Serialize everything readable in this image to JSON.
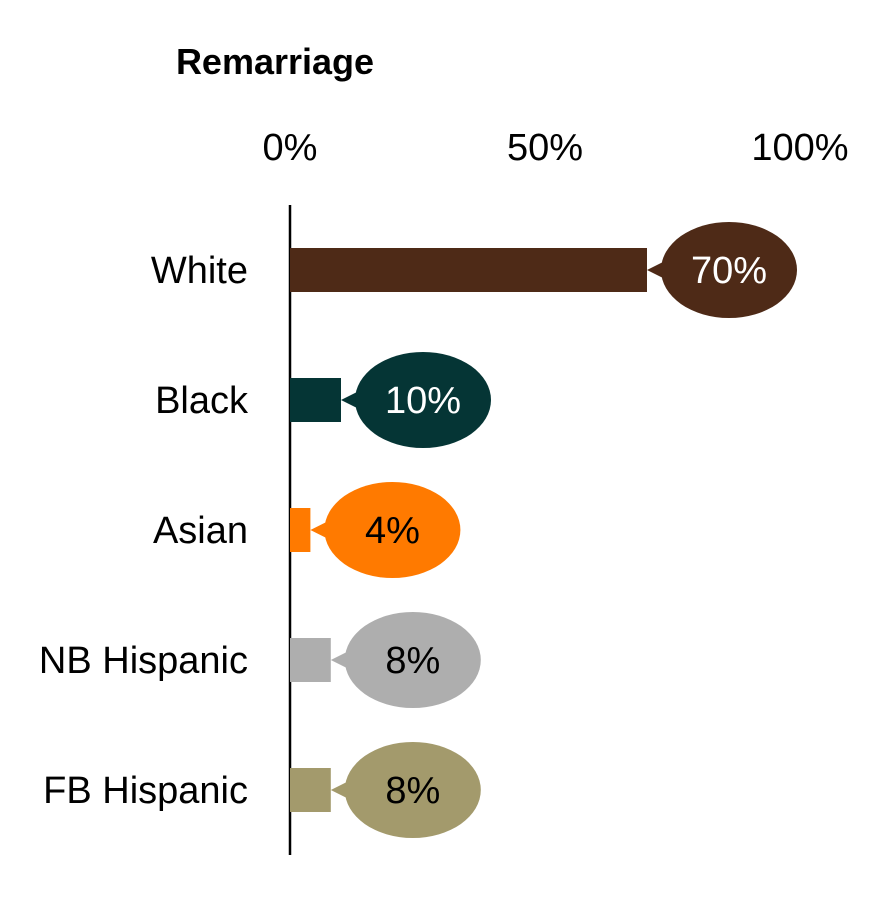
{
  "chart_data": {
    "type": "bar",
    "orientation": "horizontal",
    "title": "Remarriage",
    "xlim": [
      0,
      100
    ],
    "x_ticks": [
      "0%",
      "50%",
      "100%"
    ],
    "x_tick_values": [
      0,
      50,
      100
    ],
    "axis_position": "top",
    "grid": false,
    "categories": [
      "White",
      "Black",
      "Asian",
      "NB Hispanic",
      "FB Hispanic"
    ],
    "values": [
      70,
      10,
      4,
      8,
      8
    ],
    "value_labels": [
      "70%",
      "10%",
      "4%",
      "8%",
      "8%"
    ],
    "colors": [
      "#4E2A17",
      "#053535",
      "#FF7A00",
      "#AEAEAE",
      "#A39A6C"
    ],
    "label_text_colors": [
      "#FFFFFF",
      "#FFFFFF",
      "#000000",
      "#000000",
      "#000000"
    ]
  }
}
